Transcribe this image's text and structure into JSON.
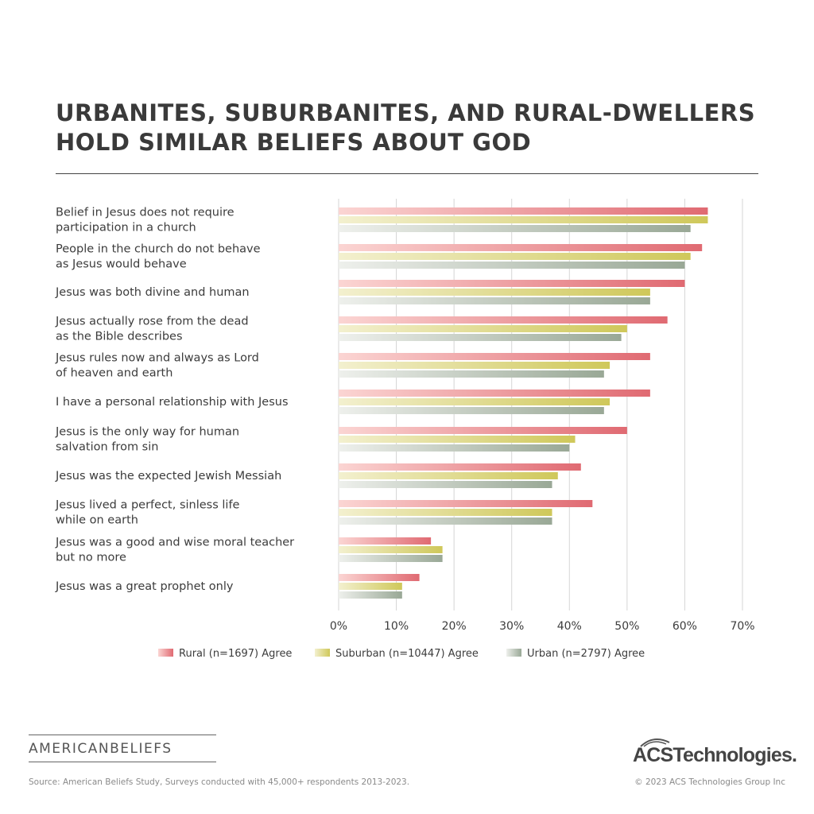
{
  "header": {
    "title_line1": "URBANITES, SUBURBANITES, AND RURAL-DWELLERS",
    "title_line2": "HOLD SIMILAR BELIEFS ABOUT GOD"
  },
  "chart_data": {
    "type": "bar",
    "orientation": "horizontal",
    "categories": [
      [
        "Belief in Jesus does not require",
        "participation in a church"
      ],
      [
        "People in the church do not behave",
        "as Jesus would behave"
      ],
      [
        "Jesus was both divine and human"
      ],
      [
        "Jesus actually rose from the dead",
        "as the Bible describes"
      ],
      [
        "Jesus rules now and always as Lord",
        "of heaven and earth"
      ],
      [
        "I have a personal relationship with Jesus"
      ],
      [
        "Jesus is the only way for human",
        "salvation from sin"
      ],
      [
        "Jesus was the expected Jewish Messiah"
      ],
      [
        "Jesus lived a perfect, sinless life",
        "while on earth"
      ],
      [
        "Jesus was a good and wise moral teacher",
        "but no more"
      ],
      [
        "Jesus was a great prophet only"
      ]
    ],
    "series": [
      {
        "name": "Rural (n=1697) Agree",
        "color": "#e06a72",
        "values": [
          64,
          63,
          60,
          57,
          54,
          54,
          50,
          42,
          44,
          16,
          14
        ]
      },
      {
        "name": "Suburban (n=10447) Agree",
        "color": "#cfc85a",
        "values": [
          64,
          61,
          54,
          50,
          47,
          47,
          41,
          38,
          37,
          18,
          11
        ]
      },
      {
        "name": "Urban (n=2797) Agree",
        "color": "#99a896",
        "values": [
          61,
          60,
          54,
          49,
          46,
          46,
          40,
          37,
          37,
          18,
          11
        ]
      }
    ],
    "xlim": [
      0,
      70
    ],
    "x_ticks": [
      "0%",
      "10%",
      "20%",
      "30%",
      "40%",
      "50%",
      "60%",
      "70%"
    ],
    "grid": true,
    "legend_position": "bottom"
  },
  "branding": {
    "left_logo": "AMERICANBELIEFS",
    "right_logo": "ACSTechnologies."
  },
  "footer": {
    "source": "Source: American Beliefs Study, Surveys conducted with 45,000+ respondents 2013-2023.",
    "copyright": "© 2023 ACS Technologies Group Inc"
  }
}
